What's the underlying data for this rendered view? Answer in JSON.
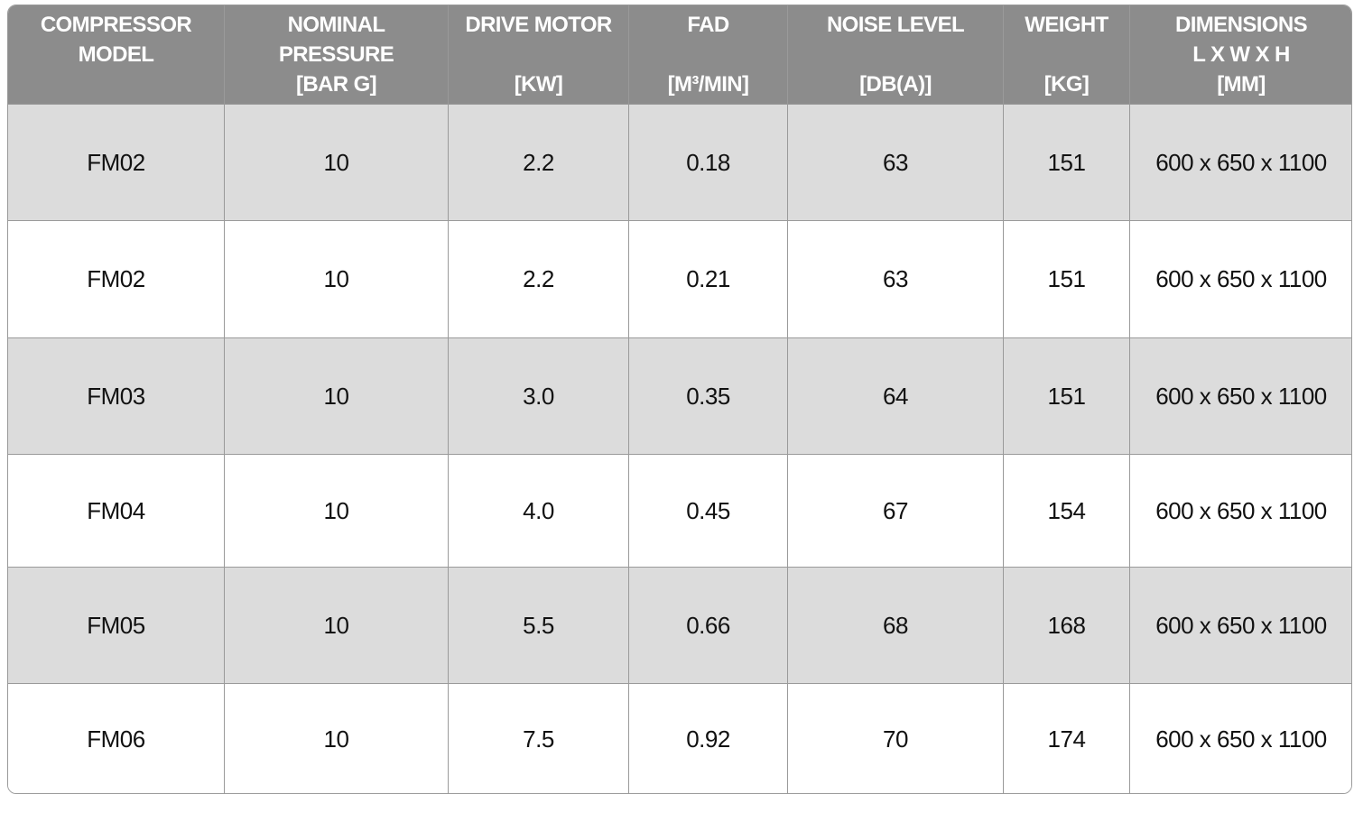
{
  "table": {
    "header": [
      [
        "COMPRESSOR",
        "MODEL"
      ],
      [
        "NOMINAL",
        "PRESSURE",
        "[BAR G]"
      ],
      [
        "DRIVE MOTOR",
        "[KW]"
      ],
      [
        "FAD",
        "[M³/MIN]"
      ],
      [
        "NOISE LEVEL",
        "[DB(A)]"
      ],
      [
        "WEIGHT",
        "[KG]"
      ],
      [
        "DIMENSIONS",
        "L X W X H",
        "[MM]"
      ]
    ],
    "rows": [
      [
        "FM02",
        "10",
        "2.2",
        "0.18",
        "63",
        "151",
        "600 x 650 x 1100"
      ],
      [
        "FM02",
        "10",
        "2.2",
        "0.21",
        "63",
        "151",
        "600 x 650 x 1100"
      ],
      [
        "FM03",
        "10",
        "3.0",
        "0.35",
        "64",
        "151",
        "600 x 650 x 1100"
      ],
      [
        "FM04",
        "10",
        "4.0",
        "0.45",
        "67",
        "154",
        "600 x 650 x 1100"
      ],
      [
        "FM05",
        "10",
        "5.5",
        "0.66",
        "68",
        "168",
        "600 x 650 x 1100"
      ],
      [
        "FM06",
        "10",
        "7.5",
        "0.92",
        "70",
        "174",
        "600 x 650 x 1100"
      ]
    ]
  }
}
